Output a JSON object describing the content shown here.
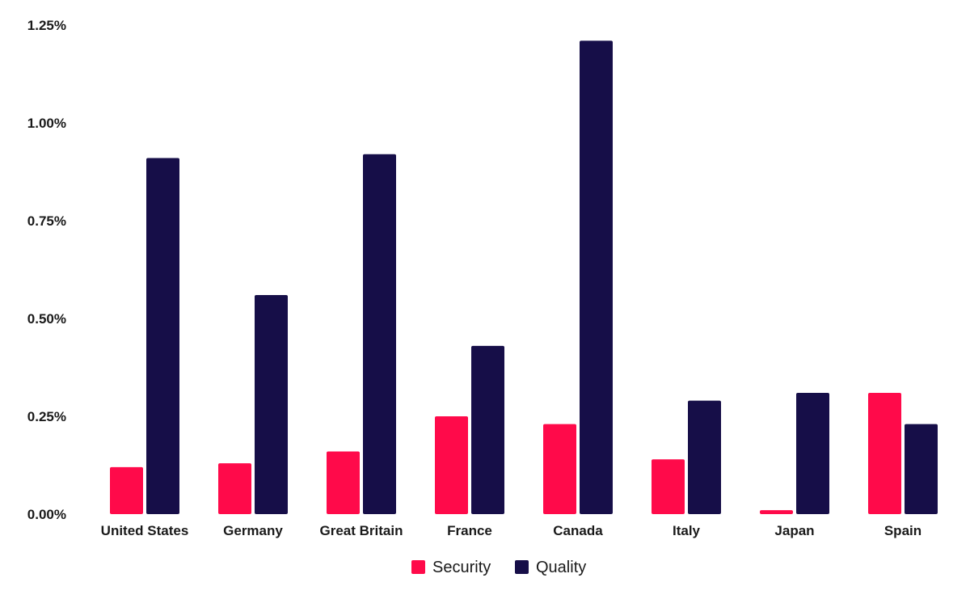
{
  "chart_data": {
    "type": "bar",
    "title": "",
    "xlabel": "",
    "ylabel": "",
    "categories": [
      "United States",
      "Germany",
      "Great Britain",
      "France",
      "Canada",
      "Italy",
      "Japan",
      "Spain"
    ],
    "series": [
      {
        "name": "Security",
        "color": "#ff0a4a",
        "values": [
          0.12,
          0.13,
          0.16,
          0.25,
          0.23,
          0.14,
          0.01,
          0.31
        ]
      },
      {
        "name": "Quality",
        "color": "#160e48",
        "values": [
          0.91,
          0.56,
          0.92,
          0.43,
          1.21,
          0.29,
          0.31,
          0.23
        ]
      }
    ],
    "ylim": [
      0,
      1.25
    ],
    "yticks": [
      "0.00%",
      "0.25%",
      "0.50%",
      "0.75%",
      "1.00%",
      "1.25%"
    ],
    "ytick_values": [
      0,
      0.25,
      0.5,
      0.75,
      1.0,
      1.25
    ],
    "grid": false,
    "legend_position": "bottom-center"
  }
}
